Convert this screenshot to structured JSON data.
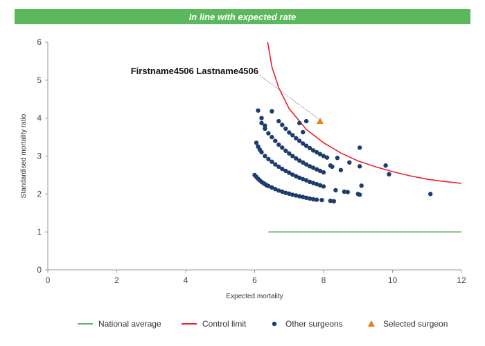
{
  "banner": {
    "title": "In line with expected rate",
    "color": "#5cb85c"
  },
  "chart_data": {
    "type": "scatter",
    "title": "In line with expected rate",
    "xlabel": "Expected mortality",
    "ylabel": "Standardised mortality ratio",
    "xlim": [
      0,
      12
    ],
    "ylim": [
      0,
      6
    ],
    "x_ticks": [
      "0",
      "2",
      "4",
      "6",
      "8",
      "10",
      "12"
    ],
    "y_ticks": [
      "0",
      "1",
      "2",
      "3",
      "4",
      "5",
      "6"
    ],
    "grid": false,
    "legend_position": "bottom",
    "legend": [
      {
        "label": "National average",
        "symbol": "line",
        "color": "#5cb85c"
      },
      {
        "label": "Control limit",
        "symbol": "line",
        "color": "#e8202a"
      },
      {
        "label": "Other surgeons",
        "symbol": "circle",
        "color": "#1f3c6e"
      },
      {
        "label": "Selected surgeon",
        "symbol": "triangle",
        "color": "#e87e1a"
      }
    ],
    "national_average": {
      "name": "National average",
      "color": "#5cb85c",
      "x": [
        6.4,
        12
      ],
      "y": [
        1,
        1
      ]
    },
    "control_limit": {
      "name": "Control limit",
      "color": "#e8202a",
      "x": [
        6.38,
        6.5,
        6.7,
        7.0,
        7.5,
        8.0,
        8.5,
        9.0,
        9.5,
        10.0,
        10.5,
        11.0,
        11.5,
        12.0
      ],
      "y": [
        6.0,
        5.35,
        4.8,
        4.25,
        3.7,
        3.35,
        3.08,
        2.87,
        2.72,
        2.59,
        2.48,
        2.39,
        2.33,
        2.28
      ]
    },
    "other_surgeons": {
      "name": "Other surgeons",
      "color": "#1f3c6e",
      "points": [
        [
          6.0,
          2.5
        ],
        [
          6.05,
          2.45
        ],
        [
          6.1,
          2.4
        ],
        [
          6.15,
          2.36
        ],
        [
          6.2,
          2.32
        ],
        [
          6.25,
          2.29
        ],
        [
          6.3,
          2.26
        ],
        [
          6.35,
          2.23
        ],
        [
          6.4,
          2.21
        ],
        [
          6.5,
          2.17
        ],
        [
          6.6,
          2.13
        ],
        [
          6.7,
          2.09
        ],
        [
          6.8,
          2.06
        ],
        [
          6.9,
          2.03
        ],
        [
          7.0,
          2.01
        ],
        [
          7.1,
          1.98
        ],
        [
          7.2,
          1.96
        ],
        [
          7.3,
          1.94
        ],
        [
          7.4,
          1.92
        ],
        [
          7.5,
          1.9
        ],
        [
          7.6,
          1.88
        ],
        [
          7.7,
          1.86
        ],
        [
          7.8,
          1.85
        ],
        [
          7.95,
          1.84
        ],
        [
          8.2,
          1.82
        ],
        [
          8.3,
          1.81
        ],
        [
          6.05,
          3.35
        ],
        [
          6.1,
          3.25
        ],
        [
          6.15,
          3.17
        ],
        [
          6.2,
          3.1
        ],
        [
          6.3,
          3.0
        ],
        [
          6.4,
          2.92
        ],
        [
          6.5,
          2.85
        ],
        [
          6.6,
          2.78
        ],
        [
          6.7,
          2.72
        ],
        [
          6.8,
          2.66
        ],
        [
          6.9,
          2.61
        ],
        [
          7.0,
          2.56
        ],
        [
          7.1,
          2.51
        ],
        [
          7.2,
          2.47
        ],
        [
          7.3,
          2.43
        ],
        [
          7.4,
          2.39
        ],
        [
          7.5,
          2.36
        ],
        [
          7.6,
          2.32
        ],
        [
          7.7,
          2.29
        ],
        [
          7.8,
          2.26
        ],
        [
          7.9,
          2.23
        ],
        [
          8.0,
          2.2
        ],
        [
          6.2,
          3.87
        ],
        [
          6.3,
          3.72
        ],
        [
          6.4,
          3.6
        ],
        [
          6.5,
          3.5
        ],
        [
          6.6,
          3.4
        ],
        [
          6.7,
          3.3
        ],
        [
          6.8,
          3.22
        ],
        [
          6.9,
          3.14
        ],
        [
          7.0,
          3.07
        ],
        [
          7.1,
          3.0
        ],
        [
          7.2,
          2.94
        ],
        [
          7.3,
          2.88
        ],
        [
          7.4,
          2.83
        ],
        [
          7.5,
          2.78
        ],
        [
          7.6,
          2.73
        ],
        [
          7.7,
          2.69
        ],
        [
          7.8,
          2.65
        ],
        [
          7.9,
          2.61
        ],
        [
          8.0,
          2.57
        ],
        [
          6.7,
          3.92
        ],
        [
          6.8,
          3.82
        ],
        [
          6.9,
          3.72
        ],
        [
          7.0,
          3.62
        ],
        [
          7.1,
          3.55
        ],
        [
          7.2,
          3.47
        ],
        [
          7.3,
          3.4
        ],
        [
          7.4,
          3.33
        ],
        [
          7.5,
          3.27
        ],
        [
          7.6,
          3.21
        ],
        [
          7.7,
          3.15
        ],
        [
          7.8,
          3.1
        ],
        [
          7.9,
          3.05
        ],
        [
          8.0,
          3.0
        ],
        [
          8.1,
          2.96
        ],
        [
          8.2,
          2.75
        ],
        [
          8.25,
          2.72
        ],
        [
          8.35,
          2.1
        ],
        [
          6.1,
          4.2
        ],
        [
          6.2,
          4.0
        ],
        [
          6.3,
          3.8
        ],
        [
          6.5,
          4.18
        ],
        [
          7.3,
          3.87
        ],
        [
          7.4,
          3.63
        ],
        [
          7.5,
          3.92
        ],
        [
          8.4,
          2.95
        ],
        [
          8.5,
          2.63
        ],
        [
          8.6,
          2.06
        ],
        [
          8.7,
          2.05
        ],
        [
          8.75,
          2.83
        ],
        [
          9.0,
          2.0
        ],
        [
          9.05,
          1.98
        ],
        [
          9.05,
          3.22
        ],
        [
          9.1,
          2.22
        ],
        [
          9.05,
          2.73
        ],
        [
          9.8,
          2.75
        ],
        [
          9.9,
          2.52
        ],
        [
          11.1,
          2.0
        ]
      ]
    },
    "selected_surgeon": {
      "name": "Selected surgeon",
      "label": "Firstname4506 Lastname4506",
      "color": "#e87e1a",
      "x": 7.9,
      "y": 3.92
    }
  }
}
